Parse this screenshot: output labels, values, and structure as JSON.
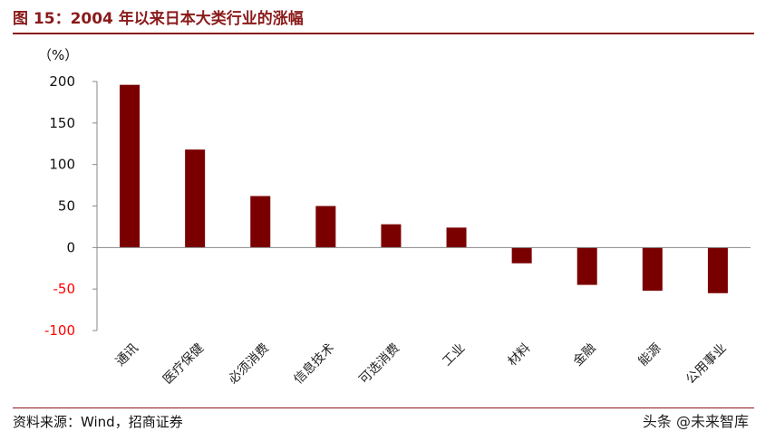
{
  "header": {
    "title": "图 15：2004 年以来日本大类行业的涨幅"
  },
  "footer": {
    "source": "资料来源：Wind，招商证券",
    "watermark": "头条 @未来智库"
  },
  "colors": {
    "bar": "#7a0000",
    "title": "#8b1a1a",
    "negative_tick": "#ff0000",
    "axis": "#888888"
  },
  "chart_data": {
    "type": "bar",
    "title": "",
    "xlabel": "",
    "ylabel": "（%）",
    "ylim": [
      -100,
      200
    ],
    "yticks": [
      200,
      150,
      100,
      50,
      0,
      -50,
      -100
    ],
    "categories": [
      "通讯",
      "医疗保健",
      "必须消费",
      "信息技术",
      "可选消费",
      "工业",
      "材料",
      "金融",
      "能源",
      "公用事业"
    ],
    "values": [
      196,
      118,
      62,
      50,
      28,
      24,
      -19,
      -45,
      -52,
      -55
    ],
    "grid": false,
    "legend": "none"
  }
}
